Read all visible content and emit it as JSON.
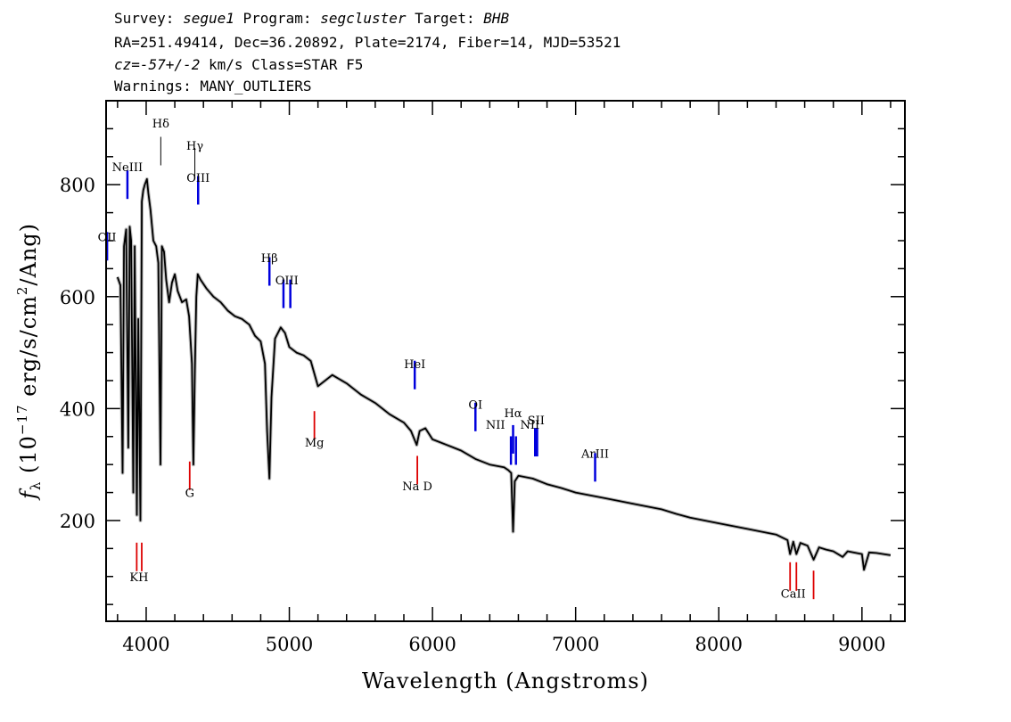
{
  "header": {
    "line1": {
      "survey_label": "Survey: ",
      "survey": "segue1",
      "program_label": " Program: ",
      "program": "segcluster",
      "target_label": " Target: ",
      "target": "BHB"
    },
    "line2": "RA=251.49414, Dec=36.20892, Plate=2174, Fiber=14, MJD=53521",
    "line3": {
      "cz": "cz=-57+/-2",
      "rest": " km/s Class=STAR F5"
    },
    "line4": "Warnings: MANY_OUTLIERS"
  },
  "chart_data": {
    "type": "line",
    "xlabel": "Wavelength (Angstroms)",
    "ylabel": "f_λ (10^-17 erg/s/cm^2/Ang)",
    "ylabel_parts": {
      "f": "f",
      "lambda": "λ",
      "open": " (10",
      "exp": "−17",
      "mid": " erg/s/cm",
      "sq": "2",
      "close": "/Ang)"
    },
    "xlim": [
      3720,
      9300
    ],
    "ylim": [
      20,
      950
    ],
    "xticks": [
      4000,
      5000,
      6000,
      7000,
      8000,
      9000
    ],
    "yticks": [
      200,
      400,
      600,
      800
    ],
    "series": [
      {
        "color": "#000000",
        "x": [
          3800,
          3820,
          3835,
          3845,
          3860,
          3875,
          3885,
          3895,
          3910,
          3920,
          3935,
          3945,
          3960,
          3970,
          3980,
          3990,
          4005,
          4015,
          4030,
          4050,
          4070,
          4085,
          4100,
          4110,
          4125,
          4140,
          4160,
          4180,
          4200,
          4220,
          4250,
          4280,
          4300,
          4320,
          4330,
          4340,
          4350,
          4360,
          4380,
          4420,
          4470,
          4520,
          4570,
          4620,
          4670,
          4720,
          4760,
          4800,
          4830,
          4845,
          4861,
          4875,
          4900,
          4940,
          4970,
          5000,
          5050,
          5100,
          5150,
          5200,
          5300,
          5400,
          5500,
          5600,
          5700,
          5800,
          5850,
          5890,
          5910,
          5950,
          6000,
          6100,
          6200,
          6300,
          6400,
          6500,
          6530,
          6550,
          6563,
          6575,
          6600,
          6700,
          6800,
          6900,
          7000,
          7200,
          7400,
          7600,
          7700,
          7800,
          8000,
          8200,
          8400,
          8480,
          8498,
          8520,
          8542,
          8570,
          8620,
          8662,
          8700,
          8750,
          8800,
          8865,
          8900,
          9000,
          9014,
          9050,
          9100,
          9150,
          9200
        ],
        "y": [
          635,
          620,
          285,
          690,
          720,
          330,
          725,
          700,
          250,
          690,
          210,
          560,
          200,
          770,
          790,
          800,
          810,
          785,
          755,
          700,
          690,
          660,
          300,
          690,
          680,
          630,
          590,
          625,
          640,
          610,
          590,
          595,
          565,
          480,
          300,
          470,
          600,
          640,
          630,
          615,
          600,
          590,
          575,
          565,
          560,
          550,
          530,
          520,
          480,
          360,
          275,
          420,
          525,
          545,
          535,
          510,
          500,
          495,
          485,
          440,
          460,
          445,
          425,
          410,
          390,
          375,
          360,
          335,
          360,
          365,
          345,
          335,
          325,
          310,
          300,
          295,
          290,
          285,
          180,
          270,
          280,
          275,
          265,
          258,
          250,
          240,
          230,
          220,
          212,
          205,
          195,
          185,
          175,
          165,
          140,
          162,
          140,
          160,
          155,
          130,
          152,
          148,
          145,
          135,
          145,
          140,
          112,
          143,
          142,
          140,
          138
        ]
      }
    ],
    "emission_lines": [
      {
        "name": "OII",
        "x": 3727,
        "y": 690
      },
      {
        "name": "NeIII",
        "x": 3869,
        "y": 800
      },
      {
        "name": "OIII",
        "x": 4363,
        "y": 790
      },
      {
        "name": "Hβ",
        "x": 4861,
        "y": 645
      },
      {
        "name": "OIII",
        "x": 4959,
        "y": 605
      },
      {
        "name": "OIII",
        "x": 5007,
        "y": 605
      },
      {
        "name": "HeI",
        "x": 5876,
        "y": 460
      },
      {
        "name": "OI",
        "x": 6300,
        "y": 385
      },
      {
        "name": "NII",
        "x": 6548,
        "y": 325
      },
      {
        "name": "Hα",
        "x": 6563,
        "y": 345
      },
      {
        "name": "NII",
        "x": 6583,
        "y": 325
      },
      {
        "name": "SII",
        "x": 6717,
        "y": 340
      },
      {
        "name": "SII",
        "x": 6731,
        "y": 340
      },
      {
        "name": "ArIII",
        "x": 7136,
        "y": 295
      }
    ],
    "absorption_lines": [
      {
        "name": "K",
        "x": 3934,
        "y": 135
      },
      {
        "name": "H",
        "x": 3969,
        "y": 135
      },
      {
        "name": "G",
        "x": 4304,
        "y": 280
      },
      {
        "name": "Mg",
        "x": 5175,
        "y": 370
      },
      {
        "name": "Na D",
        "x": 5894,
        "y": 290
      },
      {
        "name": "CaII",
        "x": 8498,
        "y": 100
      },
      {
        "name": "CaII",
        "x": 8542,
        "y": 100
      },
      {
        "name": "CaII",
        "x": 8662,
        "y": 85
      }
    ],
    "balmer_lines": [
      {
        "name": "Hδ",
        "x": 4102,
        "y": 860
      },
      {
        "name": "Hγ",
        "x": 4340,
        "y": 840
      }
    ],
    "line_labels": [
      {
        "text": "OII",
        "x": 3727,
        "y": 707,
        "color": "blue"
      },
      {
        "text": "NeIII",
        "x": 3869,
        "y": 832,
        "color": "blue"
      },
      {
        "text": "Hδ",
        "x": 4102,
        "y": 910,
        "color": "black"
      },
      {
        "text": "Hγ",
        "x": 4340,
        "y": 870,
        "color": "black"
      },
      {
        "text": "OIII",
        "x": 4363,
        "y": 813,
        "color": "blue"
      },
      {
        "text": "Hβ",
        "x": 4861,
        "y": 670,
        "color": "blue"
      },
      {
        "text": "OIII",
        "x": 4983,
        "y": 630,
        "color": "blue"
      },
      {
        "text": "HeI",
        "x": 5876,
        "y": 480,
        "color": "blue"
      },
      {
        "text": "OI",
        "x": 6300,
        "y": 408,
        "color": "blue"
      },
      {
        "text": "NII",
        "x": 6440,
        "y": 372,
        "color": "blue"
      },
      {
        "text": "Hα",
        "x": 6563,
        "y": 393,
        "color": "blue"
      },
      {
        "text": "NII",
        "x": 6680,
        "y": 372,
        "color": "blue"
      },
      {
        "text": "SII",
        "x": 6724,
        "y": 380,
        "color": "blue"
      },
      {
        "text": "ArIII",
        "x": 7136,
        "y": 320,
        "color": "blue"
      },
      {
        "text": "KH",
        "x": 3950,
        "y": 100,
        "color": "red"
      },
      {
        "text": "G",
        "x": 4304,
        "y": 250,
        "color": "red"
      },
      {
        "text": "Mg",
        "x": 5175,
        "y": 340,
        "color": "red"
      },
      {
        "text": "Na D",
        "x": 5894,
        "y": 262,
        "color": "red"
      },
      {
        "text": "CaII",
        "x": 8520,
        "y": 70,
        "color": "red"
      }
    ],
    "colors": {
      "spectrum": "#000000",
      "emission": "#0000dd",
      "absorption": "#dd0000",
      "balmer": "#000000"
    }
  }
}
